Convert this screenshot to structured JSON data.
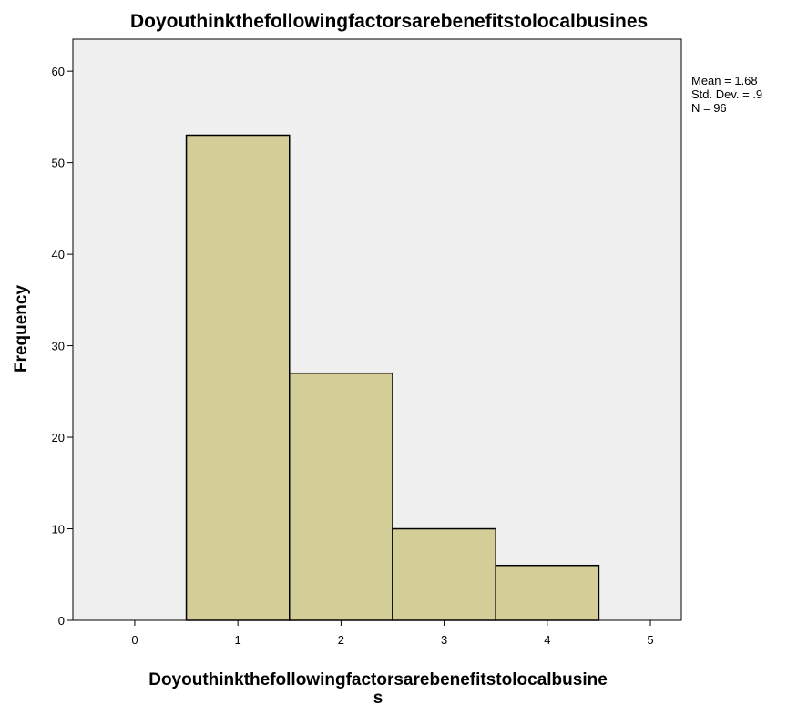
{
  "chart_data": {
    "type": "bar",
    "title": "Doyouthinkthefollowingfactorsarebenefitstolocalbusines",
    "xlabel_line1": "Doyouthinkthefollowingfactorsarebenefitstolocalbusine",
    "xlabel_line2": "s",
    "ylabel": "Frequency",
    "categories": [
      1,
      2,
      3,
      4
    ],
    "values": [
      53,
      27,
      10,
      6
    ],
    "bin_width": 1,
    "xlim": [
      -0.6,
      5.3
    ],
    "ylim": [
      0,
      63.5
    ],
    "x_ticks": [
      0,
      1,
      2,
      3,
      4,
      5
    ],
    "y_ticks": [
      0,
      10,
      20,
      30,
      40,
      50,
      60
    ],
    "grid": false,
    "legend": "none",
    "stats": {
      "mean": "Mean = 1.68",
      "std_dev": "Std. Dev. = .9",
      "n": "N = 96"
    },
    "colors": {
      "bar_fill": "#d3ce97",
      "bar_stroke": "#000000",
      "plot_background": "#f0f0f0"
    }
  }
}
